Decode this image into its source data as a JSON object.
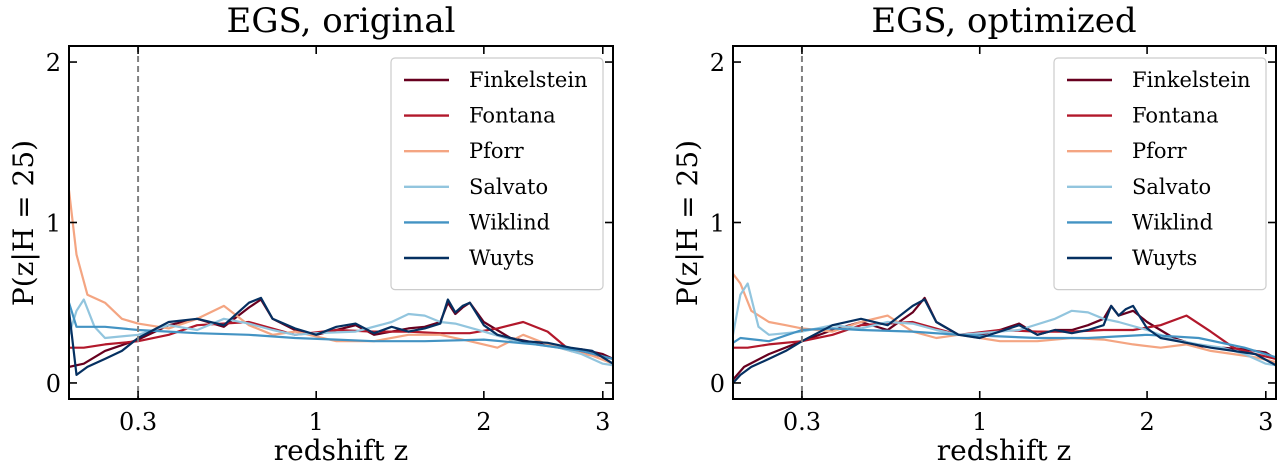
{
  "chart_data": [
    {
      "type": "line",
      "title": "EGS, original",
      "xlabel": "redshift z",
      "ylabel": "P(z|H = 25)",
      "xscale": "log(1+z)",
      "xlim": [
        0.1,
        3.1
      ],
      "ylim": [
        -0.1,
        2.1
      ],
      "xticks": [
        {
          "value": 0.3,
          "label": "0.3"
        },
        {
          "value": 1,
          "label": "1"
        },
        {
          "value": 2,
          "label": "2"
        },
        {
          "value": 3,
          "label": "3"
        }
      ],
      "yticks": [
        {
          "value": 0,
          "label": "0"
        },
        {
          "value": 1,
          "label": "1"
        },
        {
          "value": 2,
          "label": "2"
        }
      ],
      "vline": {
        "x": 0.3,
        "style": "dashed",
        "color": "#808080"
      },
      "legend": "top-right",
      "grid": false,
      "series": [
        {
          "name": "Finkelstein",
          "color": "#67001f",
          "x": [
            0.1,
            0.14,
            0.2,
            0.3,
            0.4,
            0.5,
            0.6,
            0.7,
            0.75,
            0.8,
            0.9,
            1.0,
            1.1,
            1.2,
            1.3,
            1.4,
            1.5,
            1.6,
            1.7,
            1.75,
            1.8,
            1.85,
            1.9,
            2.0,
            2.2,
            2.4,
            2.6,
            2.8,
            3.0,
            3.1
          ],
          "y": [
            0.1,
            0.12,
            0.2,
            0.27,
            0.36,
            0.4,
            0.35,
            0.47,
            0.52,
            0.4,
            0.33,
            0.3,
            0.33,
            0.36,
            0.3,
            0.32,
            0.34,
            0.35,
            0.38,
            0.5,
            0.43,
            0.47,
            0.5,
            0.38,
            0.28,
            0.25,
            0.22,
            0.21,
            0.18,
            0.15
          ]
        },
        {
          "name": "Fontana",
          "color": "#b2182b",
          "x": [
            0.1,
            0.14,
            0.2,
            0.3,
            0.4,
            0.5,
            0.7,
            0.9,
            1.1,
            1.3,
            1.5,
            1.7,
            1.9,
            2.1,
            2.3,
            2.5,
            2.7,
            2.9,
            3.1
          ],
          "y": [
            0.22,
            0.22,
            0.24,
            0.26,
            0.3,
            0.36,
            0.38,
            0.3,
            0.33,
            0.32,
            0.32,
            0.31,
            0.31,
            0.34,
            0.38,
            0.32,
            0.2,
            0.18,
            0.15
          ]
        },
        {
          "name": "Pforr",
          "color": "#f4a582",
          "x": [
            0.1,
            0.12,
            0.15,
            0.2,
            0.25,
            0.3,
            0.4,
            0.5,
            0.6,
            0.7,
            0.8,
            0.9,
            1.0,
            1.1,
            1.3,
            1.5,
            1.7,
            1.9,
            2.1,
            2.3,
            2.5,
            2.7,
            2.9,
            3.1
          ],
          "y": [
            1.2,
            0.8,
            0.55,
            0.5,
            0.4,
            0.37,
            0.34,
            0.4,
            0.48,
            0.36,
            0.3,
            0.32,
            0.29,
            0.26,
            0.26,
            0.3,
            0.3,
            0.26,
            0.22,
            0.3,
            0.24,
            0.2,
            0.17,
            0.12
          ]
        },
        {
          "name": "Salvato",
          "color": "#92c5de",
          "x": [
            0.1,
            0.12,
            0.14,
            0.17,
            0.2,
            0.3,
            0.4,
            0.5,
            0.6,
            0.7,
            0.8,
            0.9,
            1.0,
            1.2,
            1.4,
            1.5,
            1.6,
            1.7,
            1.8,
            2.0,
            2.2,
            2.4,
            2.6,
            2.8,
            3.0,
            3.1
          ],
          "y": [
            0.3,
            0.45,
            0.52,
            0.35,
            0.28,
            0.3,
            0.36,
            0.33,
            0.4,
            0.37,
            0.33,
            0.3,
            0.31,
            0.32,
            0.38,
            0.43,
            0.42,
            0.38,
            0.37,
            0.32,
            0.27,
            0.24,
            0.22,
            0.18,
            0.12,
            0.11
          ]
        },
        {
          "name": "Wiklind",
          "color": "#4393c3",
          "x": [
            0.1,
            0.12,
            0.2,
            0.3,
            0.4,
            0.5,
            0.7,
            0.9,
            1.1,
            1.3,
            1.6,
            2.0,
            2.4,
            2.8,
            3.1
          ],
          "y": [
            0.5,
            0.35,
            0.35,
            0.33,
            0.32,
            0.31,
            0.3,
            0.28,
            0.27,
            0.26,
            0.26,
            0.27,
            0.24,
            0.2,
            0.15
          ]
        },
        {
          "name": "Wuyts",
          "color": "#053061",
          "x": [
            0.1,
            0.12,
            0.15,
            0.2,
            0.25,
            0.3,
            0.4,
            0.5,
            0.6,
            0.7,
            0.75,
            0.8,
            0.9,
            1.0,
            1.1,
            1.2,
            1.3,
            1.4,
            1.5,
            1.6,
            1.7,
            1.75,
            1.8,
            1.85,
            1.9,
            2.0,
            2.1,
            2.3,
            2.5,
            2.7,
            2.9,
            3.1
          ],
          "y": [
            0.45,
            0.05,
            0.1,
            0.15,
            0.2,
            0.28,
            0.38,
            0.4,
            0.36,
            0.5,
            0.53,
            0.4,
            0.34,
            0.3,
            0.35,
            0.37,
            0.31,
            0.35,
            0.32,
            0.34,
            0.37,
            0.52,
            0.44,
            0.48,
            0.5,
            0.36,
            0.3,
            0.26,
            0.25,
            0.22,
            0.2,
            0.12
          ]
        }
      ]
    },
    {
      "type": "line",
      "title": "EGS, optimized",
      "xlabel": "redshift z",
      "ylabel": "P(z|H = 25)",
      "xscale": "log(1+z)",
      "xlim": [
        0.1,
        3.1
      ],
      "ylim": [
        -0.1,
        2.1
      ],
      "xticks": [
        {
          "value": 0.3,
          "label": "0.3"
        },
        {
          "value": 1,
          "label": "1"
        },
        {
          "value": 2,
          "label": "2"
        },
        {
          "value": 3,
          "label": "3"
        }
      ],
      "yticks": [
        {
          "value": 0,
          "label": "0"
        },
        {
          "value": 1,
          "label": "1"
        },
        {
          "value": 2,
          "label": "2"
        }
      ],
      "vline": {
        "x": 0.3,
        "style": "dashed",
        "color": "#808080"
      },
      "legend": "top-right",
      "grid": false,
      "series": [
        {
          "name": "Finkelstein",
          "color": "#67001f",
          "x": [
            0.1,
            0.13,
            0.2,
            0.3,
            0.4,
            0.5,
            0.6,
            0.7,
            0.75,
            0.8,
            0.9,
            1.0,
            1.1,
            1.2,
            1.3,
            1.4,
            1.5,
            1.6,
            1.7,
            1.75,
            1.8,
            1.9,
            2.0,
            2.2,
            2.4,
            2.6,
            2.8,
            3.0,
            3.1
          ],
          "y": [
            0.02,
            0.1,
            0.18,
            0.26,
            0.33,
            0.38,
            0.33,
            0.44,
            0.53,
            0.38,
            0.3,
            0.3,
            0.33,
            0.37,
            0.3,
            0.33,
            0.33,
            0.36,
            0.4,
            0.48,
            0.42,
            0.45,
            0.38,
            0.28,
            0.23,
            0.22,
            0.21,
            0.19,
            0.15
          ]
        },
        {
          "name": "Fontana",
          "color": "#b2182b",
          "x": [
            0.1,
            0.14,
            0.2,
            0.3,
            0.4,
            0.5,
            0.7,
            0.9,
            1.1,
            1.3,
            1.5,
            1.7,
            1.9,
            2.1,
            2.3,
            2.5,
            2.7,
            2.9,
            3.1
          ],
          "y": [
            0.22,
            0.22,
            0.24,
            0.26,
            0.3,
            0.36,
            0.38,
            0.3,
            0.33,
            0.32,
            0.32,
            0.33,
            0.33,
            0.36,
            0.42,
            0.32,
            0.22,
            0.18,
            0.15
          ]
        },
        {
          "name": "Pforr",
          "color": "#f4a582",
          "x": [
            0.1,
            0.12,
            0.15,
            0.2,
            0.25,
            0.3,
            0.4,
            0.5,
            0.6,
            0.7,
            0.8,
            0.9,
            1.0,
            1.1,
            1.3,
            1.5,
            1.7,
            1.9,
            2.1,
            2.3,
            2.5,
            2.7,
            2.9,
            3.1
          ],
          "y": [
            0.68,
            0.62,
            0.45,
            0.38,
            0.36,
            0.34,
            0.32,
            0.38,
            0.42,
            0.32,
            0.28,
            0.3,
            0.28,
            0.26,
            0.26,
            0.28,
            0.27,
            0.24,
            0.22,
            0.24,
            0.2,
            0.18,
            0.16,
            0.13
          ]
        },
        {
          "name": "Salvato",
          "color": "#92c5de",
          "x": [
            0.1,
            0.12,
            0.14,
            0.17,
            0.2,
            0.3,
            0.4,
            0.5,
            0.6,
            0.7,
            0.8,
            0.9,
            1.0,
            1.2,
            1.4,
            1.5,
            1.6,
            1.7,
            1.8,
            2.0,
            2.2,
            2.4,
            2.6,
            2.8,
            3.0,
            3.1
          ],
          "y": [
            0.3,
            0.55,
            0.62,
            0.35,
            0.3,
            0.32,
            0.36,
            0.34,
            0.38,
            0.37,
            0.33,
            0.3,
            0.31,
            0.33,
            0.4,
            0.45,
            0.44,
            0.4,
            0.38,
            0.33,
            0.27,
            0.24,
            0.22,
            0.18,
            0.12,
            0.11
          ]
        },
        {
          "name": "Wiklind",
          "color": "#4393c3",
          "x": [
            0.1,
            0.12,
            0.2,
            0.3,
            0.4,
            0.5,
            0.7,
            0.9,
            1.1,
            1.3,
            1.6,
            2.0,
            2.4,
            2.8,
            3.1
          ],
          "y": [
            0.25,
            0.28,
            0.26,
            0.33,
            0.34,
            0.33,
            0.32,
            0.3,
            0.29,
            0.28,
            0.28,
            0.3,
            0.28,
            0.22,
            0.16
          ]
        },
        {
          "name": "Wuyts",
          "color": "#053061",
          "x": [
            0.1,
            0.12,
            0.15,
            0.2,
            0.25,
            0.3,
            0.4,
            0.5,
            0.6,
            0.7,
            0.75,
            0.8,
            0.9,
            1.0,
            1.1,
            1.2,
            1.3,
            1.4,
            1.5,
            1.6,
            1.7,
            1.75,
            1.8,
            1.85,
            1.9,
            2.0,
            2.1,
            2.3,
            2.5,
            2.7,
            2.9,
            3.1
          ],
          "y": [
            0.0,
            0.05,
            0.1,
            0.15,
            0.2,
            0.26,
            0.36,
            0.4,
            0.36,
            0.48,
            0.52,
            0.38,
            0.3,
            0.28,
            0.32,
            0.36,
            0.3,
            0.33,
            0.31,
            0.33,
            0.36,
            0.48,
            0.42,
            0.46,
            0.48,
            0.34,
            0.28,
            0.25,
            0.22,
            0.2,
            0.18,
            0.11
          ]
        }
      ]
    }
  ]
}
